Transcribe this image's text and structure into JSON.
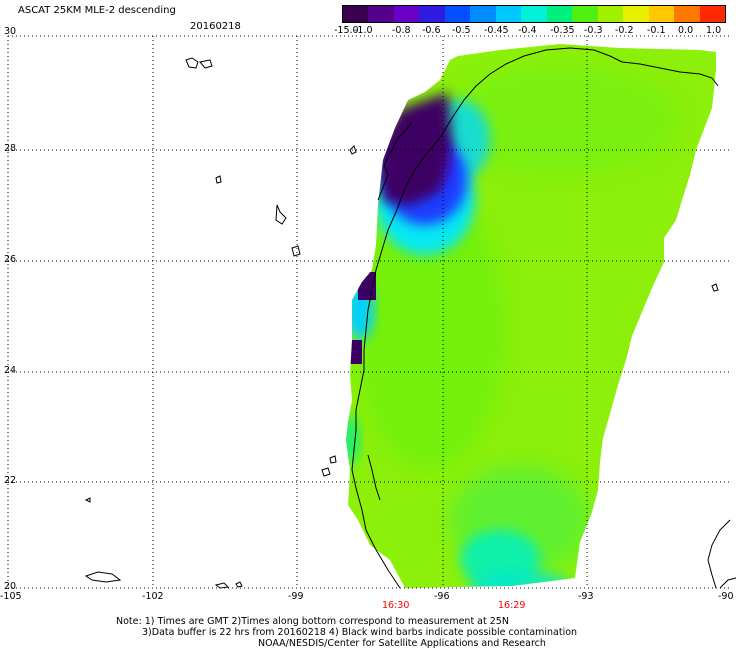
{
  "header": {
    "product": "ASCAT 25KM MLE-2 descending",
    "date": "20160218"
  },
  "colorbar": {
    "labels": [
      "-15.0",
      "-1.0",
      "-0.8",
      "-0.6",
      "-0.5",
      "-0.45",
      "-0.4",
      "-0.35",
      "-0.3",
      "-0.2",
      "-0.1",
      "0.0",
      "1.0"
    ],
    "colors": [
      "#3a0050",
      "#55008a",
      "#6a00c8",
      "#2f1ae0",
      "#0050ff",
      "#008cff",
      "#00c8ff",
      "#00f0d8",
      "#00f080",
      "#50f010",
      "#a0f000",
      "#e8f000",
      "#ffc800",
      "#ff7800",
      "#ff2800"
    ]
  },
  "axes": {
    "lat_labels": [
      "30",
      "28",
      "26",
      "24",
      "22",
      "20"
    ],
    "lon_labels": [
      "-105",
      "-102",
      "-99",
      "-96",
      "-93",
      "-90"
    ]
  },
  "times": [
    "16:30",
    "16:29"
  ],
  "notes": [
    "Note: 1) Times are GMT 2)Times along bottom correspond to measurement at 25N",
    "3)Data buffer is 22 hrs from 20160218 4) Black wind barbs indicate possible contamination",
    "NOAA/NESDIS/Center for Satellite Applications and Research"
  ],
  "field_colors": {
    "base": "#8cf00a",
    "green": "#50f010",
    "aqua": "#00f0c0",
    "cyan": "#00d8ff",
    "blue": "#1e3cff",
    "violet": "#4a10c8",
    "purple": "#3c0064"
  }
}
